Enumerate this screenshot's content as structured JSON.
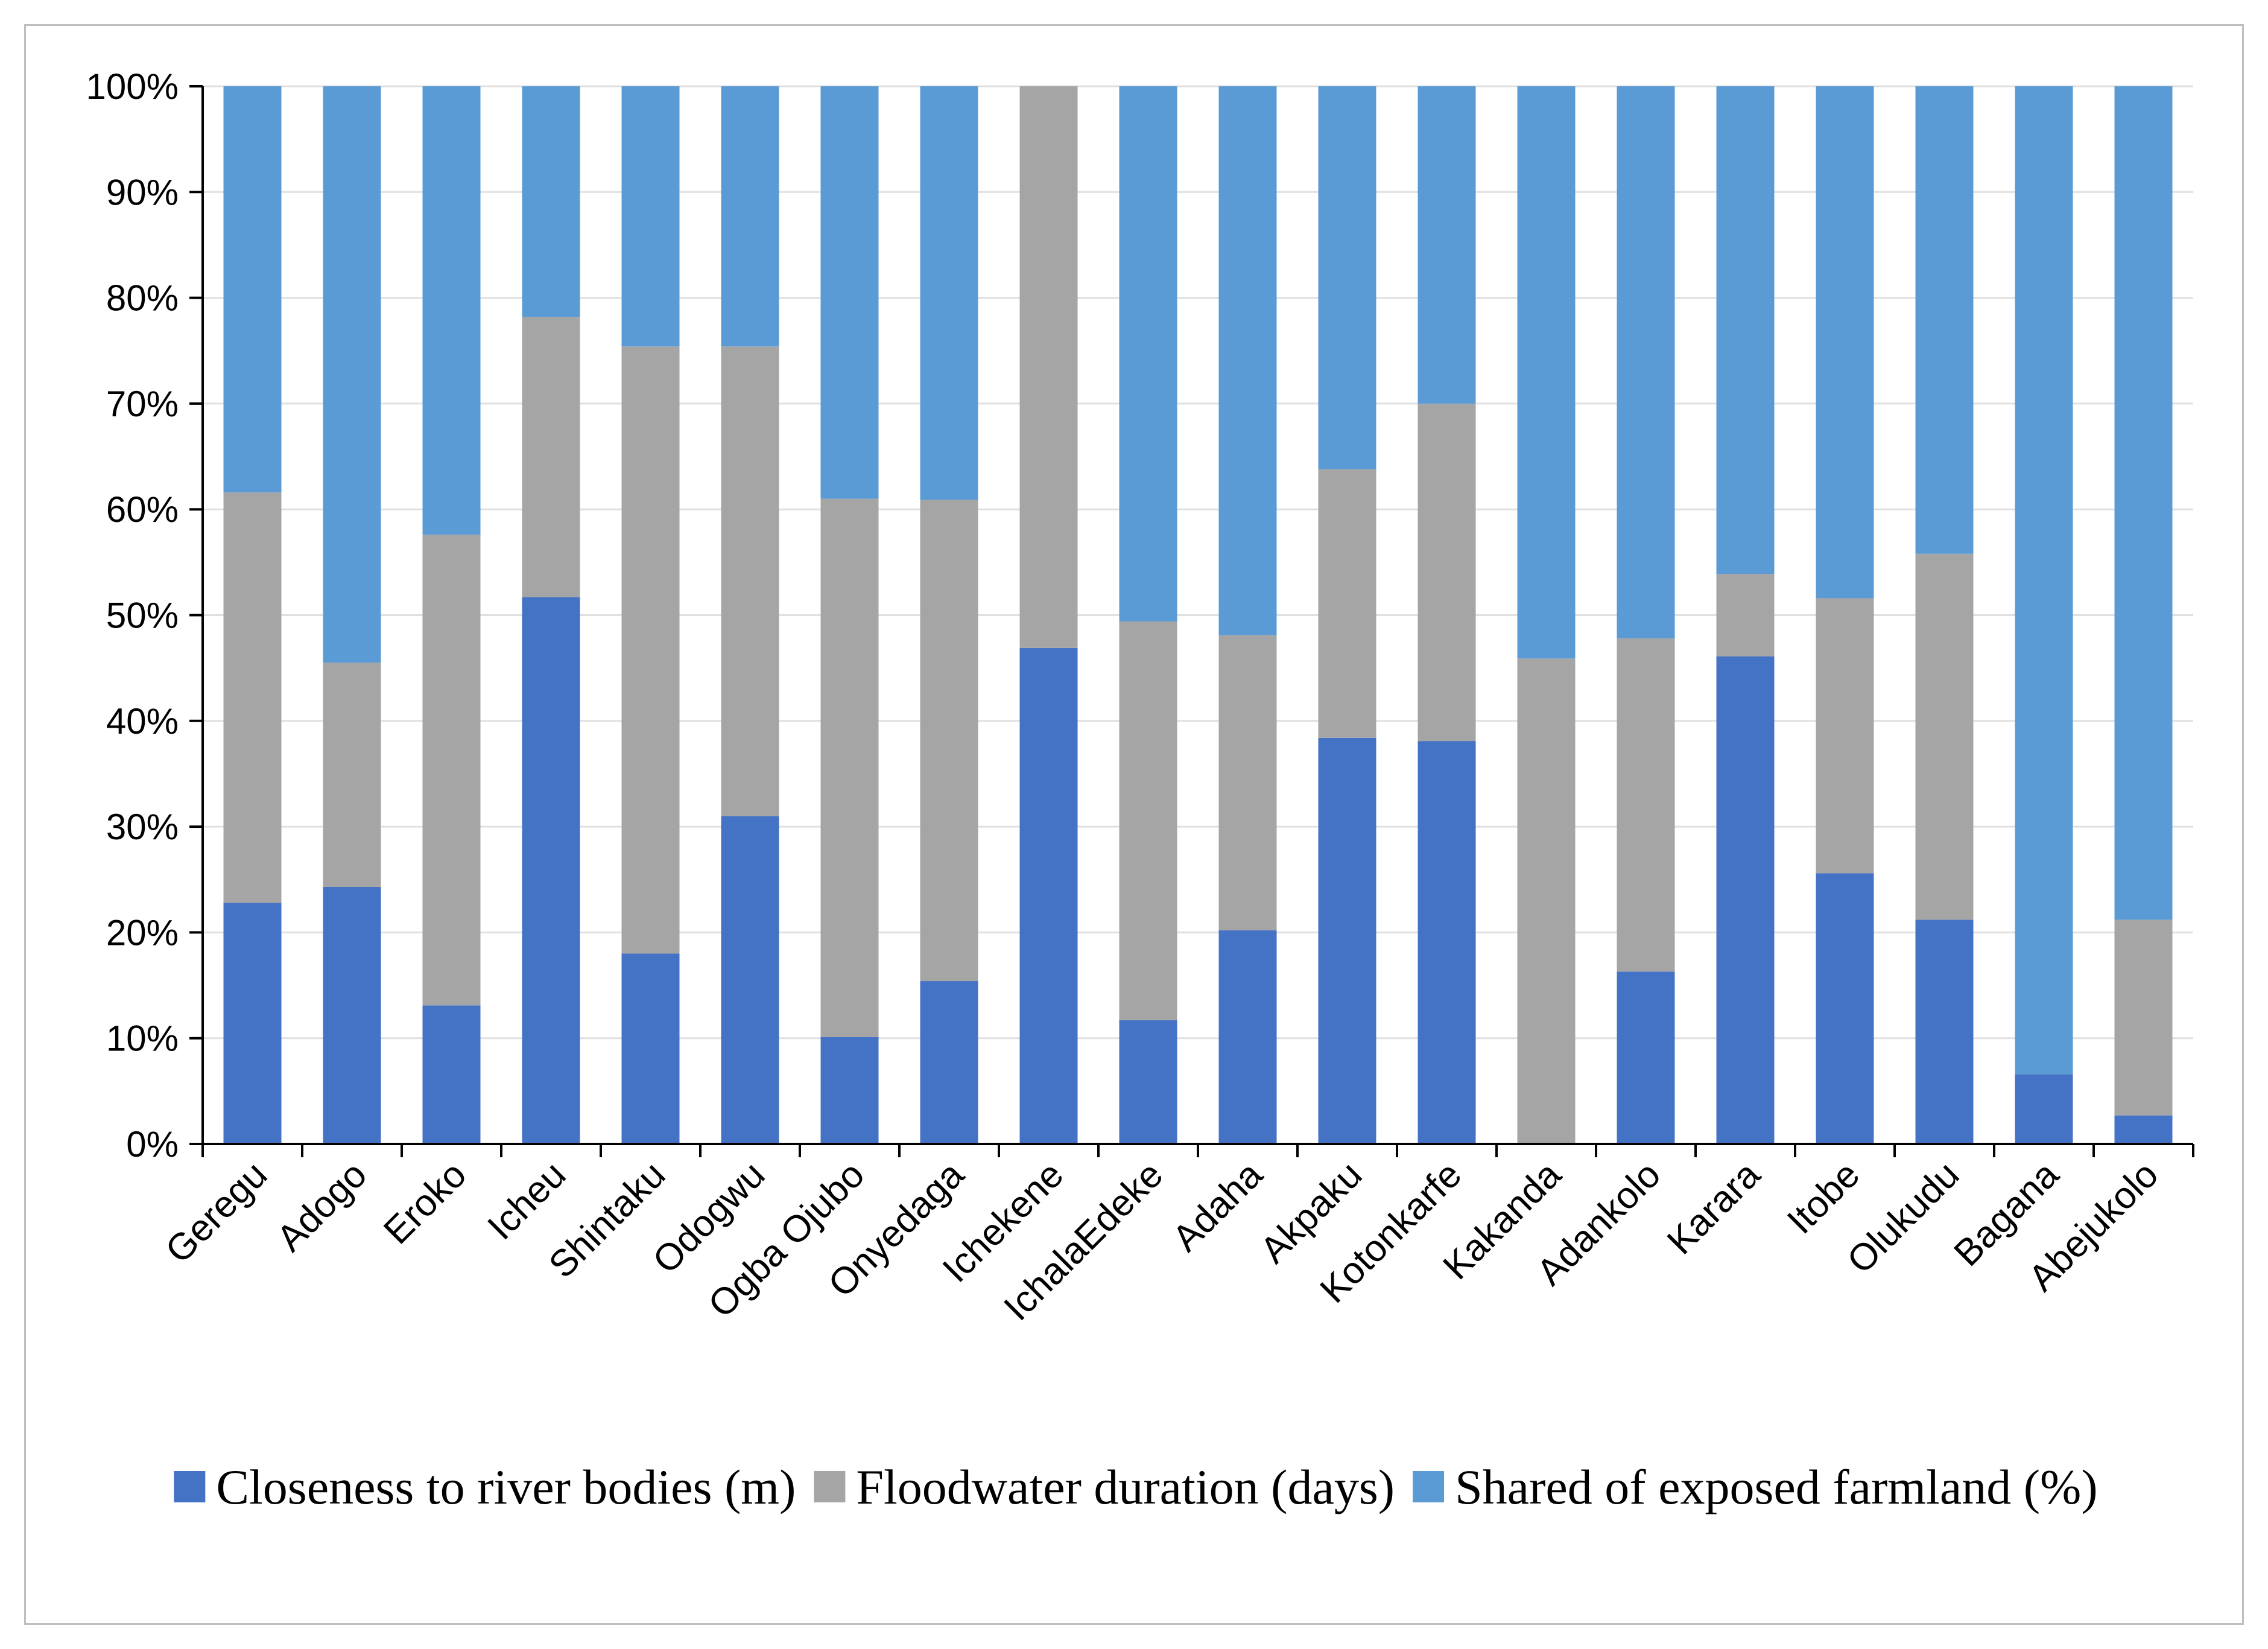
{
  "chart_data": {
    "type": "bar",
    "stacked": "percent",
    "title": "",
    "xlabel": "",
    "ylabel": "",
    "ylim": [
      0,
      100
    ],
    "yticks": [
      "0%",
      "10%",
      "20%",
      "30%",
      "40%",
      "50%",
      "60%",
      "70%",
      "80%",
      "90%",
      "100%"
    ],
    "categories": [
      "Geregu",
      "Adogo",
      "Eroko",
      "Icheu",
      "Shintaku",
      "Odogwu",
      "Ogba Ojubo",
      "Onyedaga",
      "Ichekene",
      "IchalaEdeke",
      "Adaha",
      "Akpaku",
      "Kotonkarfe",
      "Kakanda",
      "Adankolo",
      "Karara",
      "Itobe",
      "Olukudu",
      "Bagana",
      "Abejukolo"
    ],
    "series": [
      {
        "name": "Closeness to river bodies (m)",
        "color": "#4472c4",
        "values": [
          22.8,
          24.3,
          13.1,
          51.7,
          18.0,
          31.0,
          10.1,
          15.4,
          46.9,
          11.7,
          20.2,
          38.4,
          38.1,
          0.0,
          16.3,
          46.1,
          25.6,
          21.2,
          6.6,
          2.7
        ]
      },
      {
        "name": "Floodwater duration (days)",
        "color": "#a5a5a5",
        "values": [
          38.8,
          21.2,
          44.5,
          26.5,
          57.4,
          44.4,
          50.9,
          45.5,
          53.1,
          37.7,
          27.9,
          25.4,
          31.9,
          45.9,
          31.5,
          7.8,
          26.0,
          34.6,
          0.0,
          18.5
        ]
      },
      {
        "name": "Shared of exposed farmland (%)",
        "color": "#5b9bd5",
        "values": [
          38.4,
          54.5,
          42.4,
          21.8,
          24.6,
          24.6,
          39.0,
          39.1,
          0.0,
          50.6,
          51.9,
          36.2,
          30.0,
          54.1,
          52.2,
          46.1,
          48.4,
          44.2,
          93.4,
          78.8
        ]
      }
    ],
    "grid": true,
    "legend": "bottom"
  }
}
